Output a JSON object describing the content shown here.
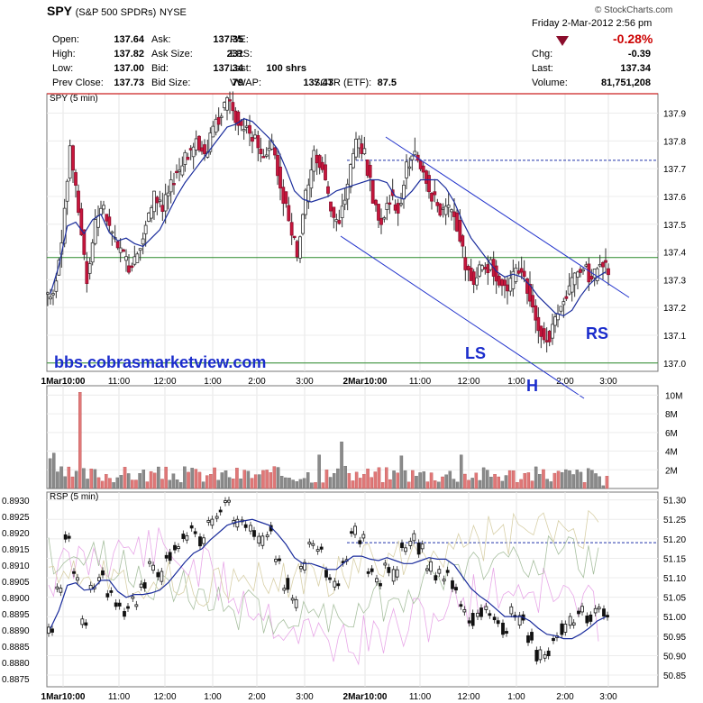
{
  "header": {
    "symbol": "SPY",
    "name": "(S&P 500 SPDRs)",
    "exchange": "NYSE",
    "watermark": "© StockCharts.com",
    "datetime": "Friday   2-Mar-2012   2:56 pm",
    "change_pct": "-0.28%",
    "quotes": [
      {
        "label": "Open:",
        "value": "137.64"
      },
      {
        "label": "High:",
        "value": "137.82"
      },
      {
        "label": "Low:",
        "value": "137.00"
      },
      {
        "label": "Prev Close:",
        "value": "137.73"
      },
      {
        "label": "Ask:",
        "value": "137.35"
      },
      {
        "label": "Ask Size:",
        "value": "231"
      },
      {
        "label": "Bid:",
        "value": "137.34"
      },
      {
        "label": "Bid Size:",
        "value": "79"
      },
      {
        "label": "P/E:",
        "value": ""
      },
      {
        "label": "EPS:",
        "value": ""
      },
      {
        "label": "Last:",
        "value": "100 shrs"
      },
      {
        "label": "VWAP:",
        "value": "137.43"
      },
      {
        "label": "SCTR (ETF):",
        "value": "87.5"
      },
      {
        "label": "Chg:",
        "value": "-0.39"
      },
      {
        "label": "Last:",
        "value": "137.34"
      },
      {
        "label": "Volume:",
        "value": "81,751,208"
      }
    ]
  },
  "chart_data": [
    {
      "type": "candlestick",
      "title": "SPY (5 min)",
      "y_ticks": [
        "137.9",
        "137.8",
        "137.7",
        "137.6",
        "137.5",
        "137.4",
        "137.3",
        "137.2",
        "137.1",
        "137.0"
      ],
      "ylim": [
        136.97,
        137.97
      ],
      "x_ticks": [
        "1Mar10:00",
        "11:00",
        "12:00",
        "1:00",
        "2:00",
        "3:00",
        "2Mar10:00",
        "11:00",
        "12:00",
        "1:00",
        "2:00",
        "3:00"
      ],
      "close_series": [
        137.25,
        137.45,
        137.78,
        137.55,
        137.3,
        137.5,
        137.55,
        137.45,
        137.4,
        137.35,
        137.4,
        137.5,
        137.6,
        137.55,
        137.65,
        137.7,
        137.75,
        137.8,
        137.75,
        137.85,
        137.9,
        137.95,
        137.85,
        137.85,
        137.8,
        137.75,
        137.8,
        137.65,
        137.5,
        137.4,
        137.6,
        137.75,
        137.7,
        137.55,
        137.5,
        137.65,
        137.8,
        137.75,
        137.6,
        137.5,
        137.6,
        137.55,
        137.7,
        137.75,
        137.7,
        137.6,
        137.55,
        137.55,
        137.5,
        137.35,
        137.3,
        137.35,
        137.35,
        137.3,
        137.25,
        137.35,
        137.3,
        137.2,
        137.1,
        137.1,
        137.2,
        137.25,
        137.3,
        137.35,
        137.3,
        137.35,
        137.34
      ],
      "annotations": [
        "bbs.cobrasmarketview.com",
        "LS",
        "H",
        "RS"
      ],
      "reference_lines": [
        137.97,
        137.73,
        137.38,
        137.0
      ]
    },
    {
      "type": "bar",
      "title": "Volume",
      "y_ticks": [
        "10M",
        "8M",
        "6M",
        "4M",
        "2M"
      ]
    },
    {
      "type": "line",
      "title": "RSP (5 min)",
      "y_ticks_left": [
        "0.8930",
        "0.8925",
        "0.8920",
        "0.8915",
        "0.8910",
        "0.8905",
        "0.8900",
        "0.8895",
        "0.8890",
        "0.8885",
        "0.8880",
        "0.8875"
      ],
      "y_ticks_right": [
        "51.30",
        "51.25",
        "51.20",
        "51.15",
        "51.10",
        "51.05",
        "51.00",
        "50.95",
        "50.90",
        "50.85"
      ]
    }
  ]
}
